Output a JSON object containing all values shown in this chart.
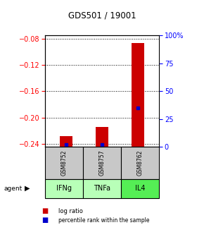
{
  "title": "GDS501 / 19001",
  "samples": [
    "GSM8752",
    "GSM8757",
    "GSM8762"
  ],
  "agents": [
    "IFNg",
    "TNFa",
    "IL4"
  ],
  "log_ratios": [
    -0.228,
    -0.215,
    -0.086
  ],
  "percentile_ranks": [
    2,
    2,
    35
  ],
  "ylim_left": [
    -0.245,
    -0.075
  ],
  "yticks_left": [
    -0.24,
    -0.2,
    -0.16,
    -0.12,
    -0.08
  ],
  "ylim_right": [
    0,
    100
  ],
  "yticks_right": [
    0,
    25,
    50,
    75,
    100
  ],
  "ytick_labels_right": [
    "0",
    "25",
    "50",
    "75",
    "100%"
  ],
  "bar_color": "#cc0000",
  "marker_color": "#0000cc",
  "sample_bg": "#c8c8c8",
  "agent_bg_colors": [
    "#b8ffb8",
    "#b8ffb8",
    "#55ee55"
  ],
  "bar_width": 0.35,
  "background_color": "#ffffff"
}
